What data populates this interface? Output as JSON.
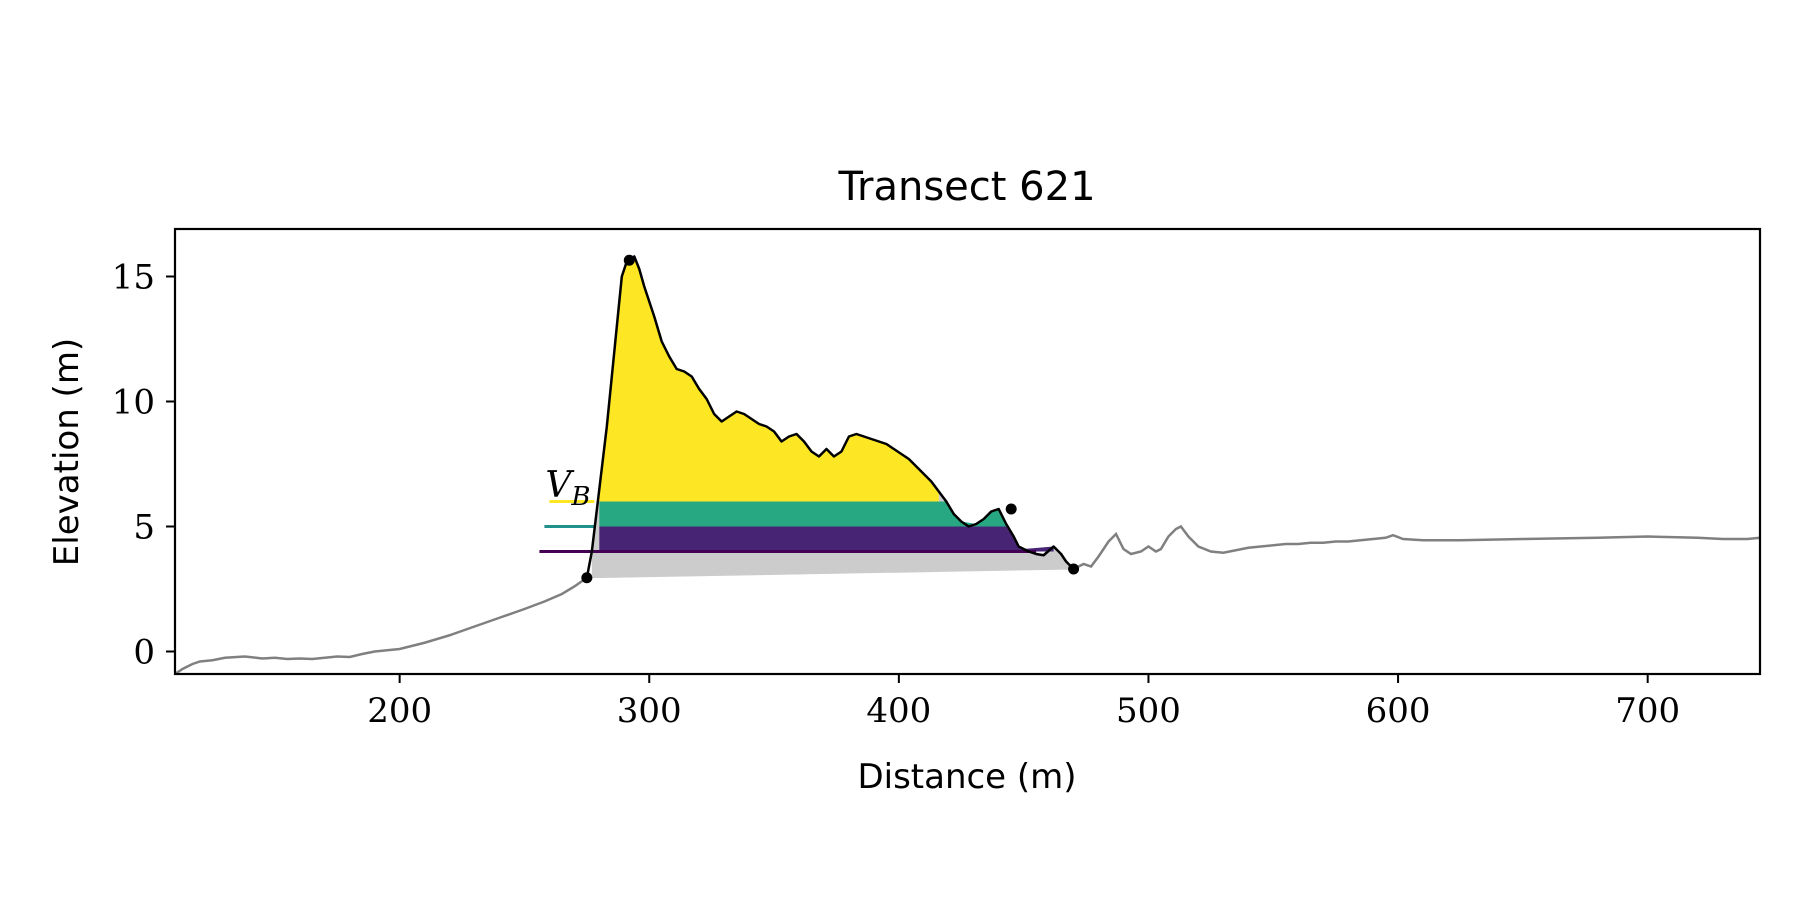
{
  "chart_data": {
    "type": "area",
    "title": "Transect 621",
    "xlabel": "Distance (m)",
    "ylabel": "Elevation (m)",
    "xlim": [
      110,
      745
    ],
    "ylim": [
      -0.9,
      16.9
    ],
    "xticks": [
      200,
      300,
      400,
      500,
      600,
      700
    ],
    "yticks": [
      0,
      5,
      10,
      15
    ],
    "grid": false,
    "legend": "none",
    "colors": {
      "profile": "#808080",
      "dune": "#000000",
      "yellow": "#fde725",
      "teal": "#21918c",
      "teal_fill": "#27a882",
      "purple": "#440154",
      "purple_fill": "#482475",
      "base": "#cccccc"
    },
    "profile": {
      "x": [
        110,
        113,
        117,
        120,
        125,
        130,
        138,
        145,
        150,
        155,
        160,
        165,
        170,
        175,
        180,
        185,
        190,
        195,
        200,
        210,
        220,
        230,
        240,
        250,
        258,
        265,
        270,
        275
      ],
      "y": [
        -0.9,
        -0.7,
        -0.5,
        -0.4,
        -0.35,
        -0.25,
        -0.2,
        -0.28,
        -0.25,
        -0.3,
        -0.28,
        -0.3,
        -0.25,
        -0.2,
        -0.22,
        -0.1,
        0,
        0.05,
        0.1,
        0.35,
        0.65,
        1.0,
        1.35,
        1.7,
        2.0,
        2.3,
        2.6,
        2.95
      ]
    },
    "profile_right": {
      "x": [
        470,
        474,
        477,
        480,
        484,
        487,
        490,
        493,
        497,
        500,
        503,
        505,
        508,
        511,
        513,
        516,
        520,
        525,
        530,
        535,
        540,
        545,
        550,
        555,
        560,
        565,
        570,
        575,
        580,
        585,
        590,
        595,
        598,
        602,
        610,
        625,
        650,
        680,
        700,
        720,
        730,
        740,
        745
      ],
      "y": [
        3.3,
        3.5,
        3.4,
        3.8,
        4.4,
        4.7,
        4.1,
        3.9,
        4.0,
        4.2,
        4.0,
        4.1,
        4.6,
        4.9,
        5.0,
        4.6,
        4.2,
        4.0,
        3.95,
        4.05,
        4.15,
        4.2,
        4.25,
        4.3,
        4.3,
        4.35,
        4.35,
        4.4,
        4.4,
        4.45,
        4.5,
        4.55,
        4.65,
        4.5,
        4.45,
        4.45,
        4.5,
        4.55,
        4.6,
        4.55,
        4.5,
        4.5,
        4.55
      ]
    },
    "dune": {
      "x": [
        275,
        277,
        280,
        283,
        286,
        289,
        291,
        292,
        294,
        296,
        298,
        300,
        302,
        305,
        308,
        311,
        314,
        317,
        320,
        323,
        326,
        329,
        332,
        335,
        338,
        341,
        344,
        347,
        350,
        353,
        356,
        359,
        362,
        365,
        368,
        371,
        374,
        377,
        380,
        383,
        386,
        389,
        392,
        395,
        398,
        401,
        404,
        407,
        410,
        413,
        416,
        419,
        422,
        425,
        428,
        431,
        434,
        437,
        440,
        443,
        446,
        448,
        450,
        452,
        455,
        458,
        462,
        465,
        467,
        469,
        470
      ],
      "y": [
        2.95,
        4.0,
        6.5,
        9.0,
        12.0,
        15.0,
        15.6,
        15.65,
        15.8,
        15.3,
        14.6,
        14.0,
        13.4,
        12.4,
        11.8,
        11.3,
        11.2,
        11.0,
        10.5,
        10.1,
        9.5,
        9.2,
        9.4,
        9.6,
        9.5,
        9.3,
        9.1,
        9.0,
        8.8,
        8.4,
        8.6,
        8.7,
        8.4,
        8.0,
        7.8,
        8.1,
        7.8,
        8.0,
        8.6,
        8.7,
        8.6,
        8.5,
        8.4,
        8.3,
        8.1,
        7.9,
        7.7,
        7.4,
        7.1,
        6.8,
        6.4,
        6.0,
        5.5,
        5.2,
        5.0,
        5.1,
        5.3,
        5.6,
        5.7,
        5.1,
        4.6,
        4.2,
        4.1,
        4.0,
        3.9,
        3.85,
        4.2,
        3.9,
        3.6,
        3.4,
        3.3
      ]
    },
    "levels": {
      "base_start": [
        275,
        2.95
      ],
      "base_end": [
        470,
        3.3
      ],
      "purple_y": 4.0,
      "teal_y": 5.0,
      "yellow_y": 6.0,
      "purple_line_x": [
        256,
        455
      ],
      "teal_line_x": [
        258,
        278
      ],
      "yellow_line_x": [
        260,
        278
      ]
    },
    "markers": [
      {
        "x": 275,
        "y": 2.95
      },
      {
        "x": 292,
        "y": 15.65
      },
      {
        "x": 445,
        "y": 5.7
      },
      {
        "x": 470,
        "y": 3.3
      }
    ],
    "annotation": {
      "label_main": "V",
      "label_sub": "B",
      "x": 260,
      "y": 6.1
    }
  }
}
